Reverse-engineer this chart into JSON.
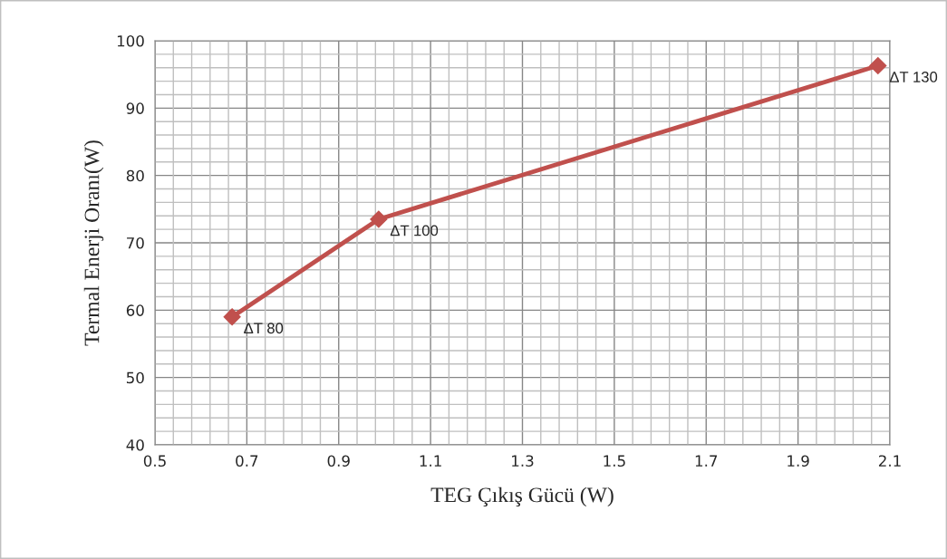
{
  "chart_data": {
    "type": "line",
    "xlabel": "TEG Çıkış Gücü (W)",
    "ylabel": "Termal Enerji Oranı(W)",
    "x": [
      0.668,
      0.987,
      2.074
    ],
    "series": [
      {
        "color": "#c0504d",
        "values": [
          59,
          73.5,
          96.3
        ]
      }
    ],
    "marker": "diamond",
    "line_style": "solid",
    "grid": true,
    "xlim": [
      0.5,
      2.1
    ],
    "xticks": [
      0.5,
      0.7,
      0.9,
      1.1,
      1.3,
      1.5,
      1.7,
      1.9,
      2.1
    ],
    "ylim": [
      40,
      100
    ],
    "yticks": [
      40,
      50,
      60,
      70,
      80,
      90,
      100
    ],
    "annotations": [
      {
        "text": "ΔT 80",
        "x": 0.668,
        "y": 59
      },
      {
        "text": "ΔT 100",
        "x": 0.987,
        "y": 73.5
      },
      {
        "text": "ΔT 130",
        "x": 2.074,
        "y": 96.3
      }
    ]
  }
}
